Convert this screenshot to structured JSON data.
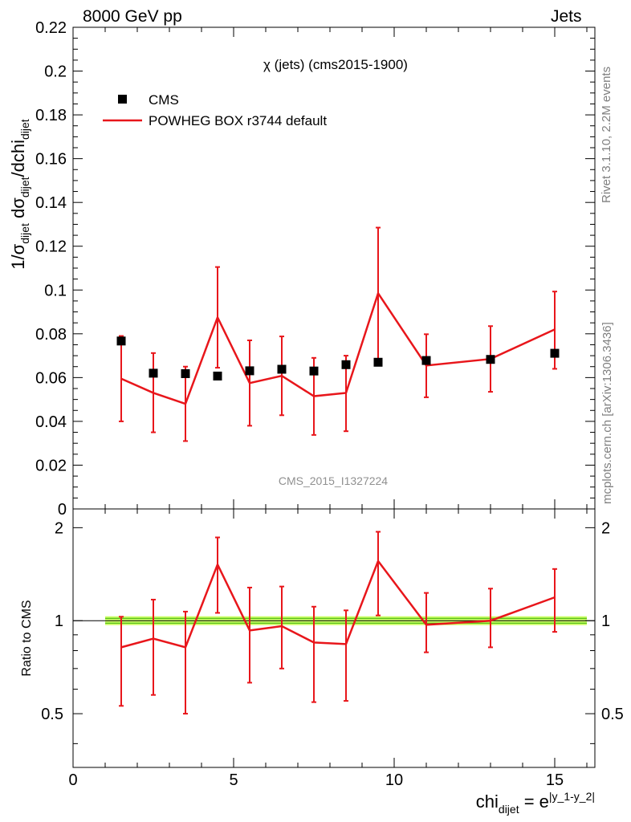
{
  "header": {
    "left": "8000 GeV pp",
    "right": "Jets"
  },
  "side": {
    "rivet": "Rivet 3.1.10,  2.2M events",
    "site": "mcplots.cern.ch [arXiv:1306.3436]"
  },
  "chart_data": [
    {
      "type": "line",
      "title": "χ (jets) (cms2015-1900)",
      "watermark": "CMS_2015_I1327224",
      "ylabel": "1/σdijet dσdijet/dchidijet",
      "ylim": [
        0,
        0.22
      ],
      "xlim": [
        0,
        16.25
      ],
      "legend": {
        "placement": "top-left",
        "entries": [
          "CMS",
          "POWHEG BOX r3744 default"
        ]
      },
      "yticks": [
        "0",
        "0.02",
        "0.04",
        "0.06",
        "0.08",
        "0.1",
        "0.12",
        "0.14",
        "0.16",
        "0.18",
        "0.2",
        "0.22"
      ],
      "ytick_values": [
        0,
        0.02,
        0.04,
        0.06,
        0.08,
        0.1,
        0.12,
        0.14,
        0.16,
        0.18,
        0.2,
        0.22
      ],
      "series": [
        {
          "name": "CMS",
          "x": [
            1.5,
            2.5,
            3.5,
            4.5,
            5.5,
            6.5,
            7.5,
            8.5,
            9.5,
            11,
            13,
            15
          ],
          "values": [
            0.0767,
            0.062,
            0.0618,
            0.0607,
            0.0631,
            0.0638,
            0.063,
            0.0659,
            0.067,
            0.0678,
            0.0683,
            0.0711
          ]
        },
        {
          "name": "POWHEG BOX r3744 default",
          "x": [
            1.5,
            2.5,
            3.5,
            4.5,
            5.5,
            6.5,
            7.5,
            8.5,
            9.5,
            11,
            13,
            15
          ],
          "bin_edges": [
            1,
            2,
            3,
            4,
            5,
            6,
            7,
            8,
            9,
            10,
            12,
            14,
            16
          ],
          "values": [
            0.0595,
            0.053,
            0.048,
            0.0875,
            0.0575,
            0.0608,
            0.0515,
            0.053,
            0.0985,
            0.0655,
            0.0685,
            0.082
          ],
          "err_low": [
            0.04,
            0.035,
            0.031,
            0.0645,
            0.038,
            0.0428,
            0.0338,
            0.0355,
            0.068,
            0.051,
            0.0535,
            0.064
          ],
          "err_high": [
            0.079,
            0.0712,
            0.065,
            0.1105,
            0.077,
            0.0788,
            0.069,
            0.07,
            0.1285,
            0.0798,
            0.0835,
            0.0993
          ]
        }
      ]
    },
    {
      "type": "line",
      "ylabel": "Ratio to CMS",
      "xlabel": "chidijet = e|y_1-y_2|",
      "ylim": [
        0.335,
        2.3
      ],
      "log_y": true,
      "xticks": [
        "0",
        "5",
        "10",
        "15"
      ],
      "xtick_values": [
        0,
        5,
        10,
        15
      ],
      "yticks": [
        "0.5",
        "1",
        "2"
      ],
      "ytick_values": [
        0.5,
        1,
        2
      ],
      "band": {
        "color": "#ccff66",
        "low": 0.985,
        "high": 1.015
      },
      "series": [
        {
          "name": "POWHEG BOX r3744 default",
          "x": [
            1.5,
            2.5,
            3.5,
            4.5,
            5.5,
            6.5,
            7.5,
            8.5,
            9.5,
            11,
            13,
            15
          ],
          "values": [
            0.82,
            0.875,
            0.82,
            1.52,
            0.93,
            0.96,
            0.85,
            0.84,
            1.56,
            0.97,
            1.0,
            1.19
          ],
          "err_low": [
            0.53,
            0.575,
            0.5,
            1.06,
            0.63,
            0.7,
            0.545,
            0.55,
            1.04,
            0.79,
            0.82,
            0.92
          ],
          "err_high": [
            1.03,
            1.17,
            1.07,
            1.86,
            1.28,
            1.29,
            1.11,
            1.08,
            1.94,
            1.23,
            1.27,
            1.47
          ]
        }
      ]
    }
  ],
  "colors": {
    "mc": "#e8161b",
    "data": "#000000",
    "band": "#ccff66",
    "band_line": "#33aa00"
  }
}
